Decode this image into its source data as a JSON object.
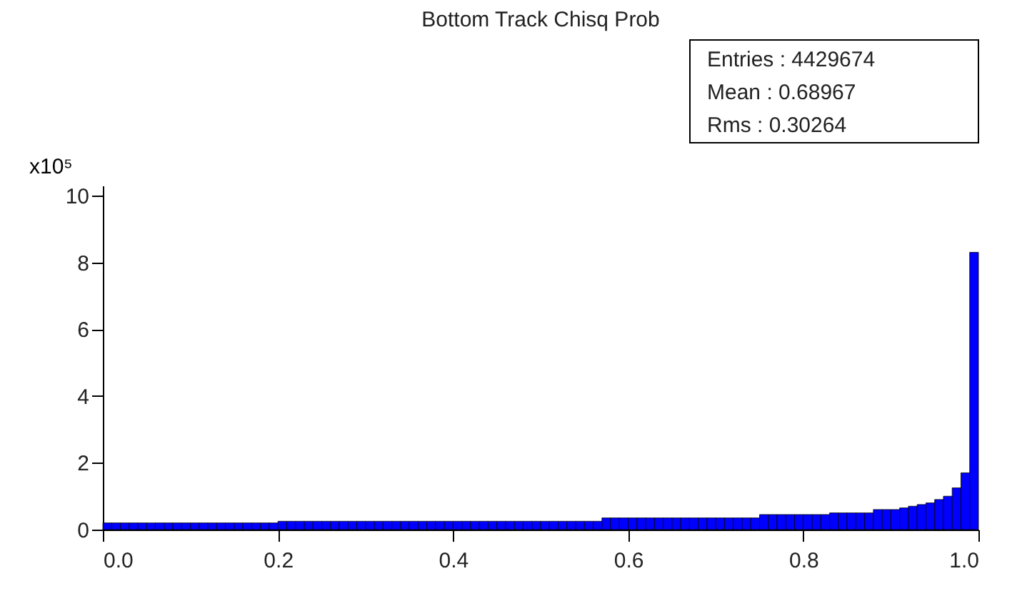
{
  "chart_data": {
    "type": "histogram",
    "title": "Bottom Track Chisq Prob",
    "ylabel": "x10⁵",
    "color": "#0000ff",
    "bins": [
      0,
      0.01,
      0.02,
      0.03,
      0.04,
      0.05,
      0.06,
      0.07,
      0.08,
      0.09,
      0.1,
      0.11,
      0.12,
      0.13,
      0.14,
      0.15,
      0.16,
      0.17,
      0.18,
      0.19,
      0.2,
      0.21,
      0.22,
      0.23,
      0.24,
      0.25,
      0.26,
      0.27,
      0.28,
      0.29,
      0.3,
      0.31,
      0.32,
      0.33,
      0.34,
      0.35,
      0.36,
      0.37,
      0.38,
      0.39,
      0.4,
      0.41,
      0.42,
      0.43,
      0.44,
      0.45,
      0.46,
      0.47,
      0.48,
      0.49,
      0.5,
      0.51,
      0.52,
      0.53,
      0.54,
      0.55,
      0.56,
      0.57,
      0.58,
      0.59,
      0.6,
      0.61,
      0.62,
      0.63,
      0.64,
      0.65,
      0.66,
      0.67,
      0.68,
      0.69,
      0.7,
      0.71,
      0.72,
      0.73,
      0.74,
      0.75,
      0.76,
      0.77,
      0.78,
      0.79,
      0.8,
      0.81,
      0.82,
      0.83,
      0.84,
      0.85,
      0.86,
      0.87,
      0.88,
      0.89,
      0.9,
      0.91,
      0.92,
      0.93,
      0.94,
      0.95,
      0.96,
      0.97,
      0.98,
      0.99,
      1
    ],
    "values": [
      0.2,
      0.2,
      0.2,
      0.2,
      0.2,
      0.2,
      0.2,
      0.2,
      0.2,
      0.2,
      0.2,
      0.2,
      0.2,
      0.2,
      0.2,
      0.2,
      0.2,
      0.2,
      0.2,
      0.2,
      0.25,
      0.25,
      0.25,
      0.25,
      0.25,
      0.25,
      0.25,
      0.25,
      0.25,
      0.25,
      0.25,
      0.25,
      0.25,
      0.25,
      0.25,
      0.25,
      0.25,
      0.25,
      0.25,
      0.25,
      0.25,
      0.25,
      0.25,
      0.25,
      0.25,
      0.25,
      0.25,
      0.25,
      0.25,
      0.25,
      0.25,
      0.25,
      0.25,
      0.25,
      0.25,
      0.25,
      0.25,
      0.35,
      0.35,
      0.35,
      0.35,
      0.35,
      0.35,
      0.35,
      0.35,
      0.35,
      0.35,
      0.35,
      0.35,
      0.35,
      0.35,
      0.35,
      0.35,
      0.35,
      0.35,
      0.45,
      0.45,
      0.45,
      0.45,
      0.45,
      0.45,
      0.45,
      0.45,
      0.5,
      0.5,
      0.5,
      0.5,
      0.5,
      0.6,
      0.6,
      0.6,
      0.65,
      0.7,
      0.75,
      0.8,
      0.9,
      1.0,
      1.25,
      1.7,
      8.3
    ],
    "xlim": [
      0,
      1
    ],
    "xticks": [
      {
        "value": 0,
        "label": "0.0"
      },
      0.2,
      0.4,
      0.6,
      0.8,
      {
        "value": 1,
        "label": "1.0"
      }
    ],
    "ylim": [
      0,
      10.3
    ],
    "yticks": [
      0,
      2,
      4,
      6,
      8,
      10
    ],
    "grid": false,
    "annotations": [
      "Entries : 4429674",
      "Mean :       0.68967",
      "Rms :        0.30264"
    ]
  }
}
